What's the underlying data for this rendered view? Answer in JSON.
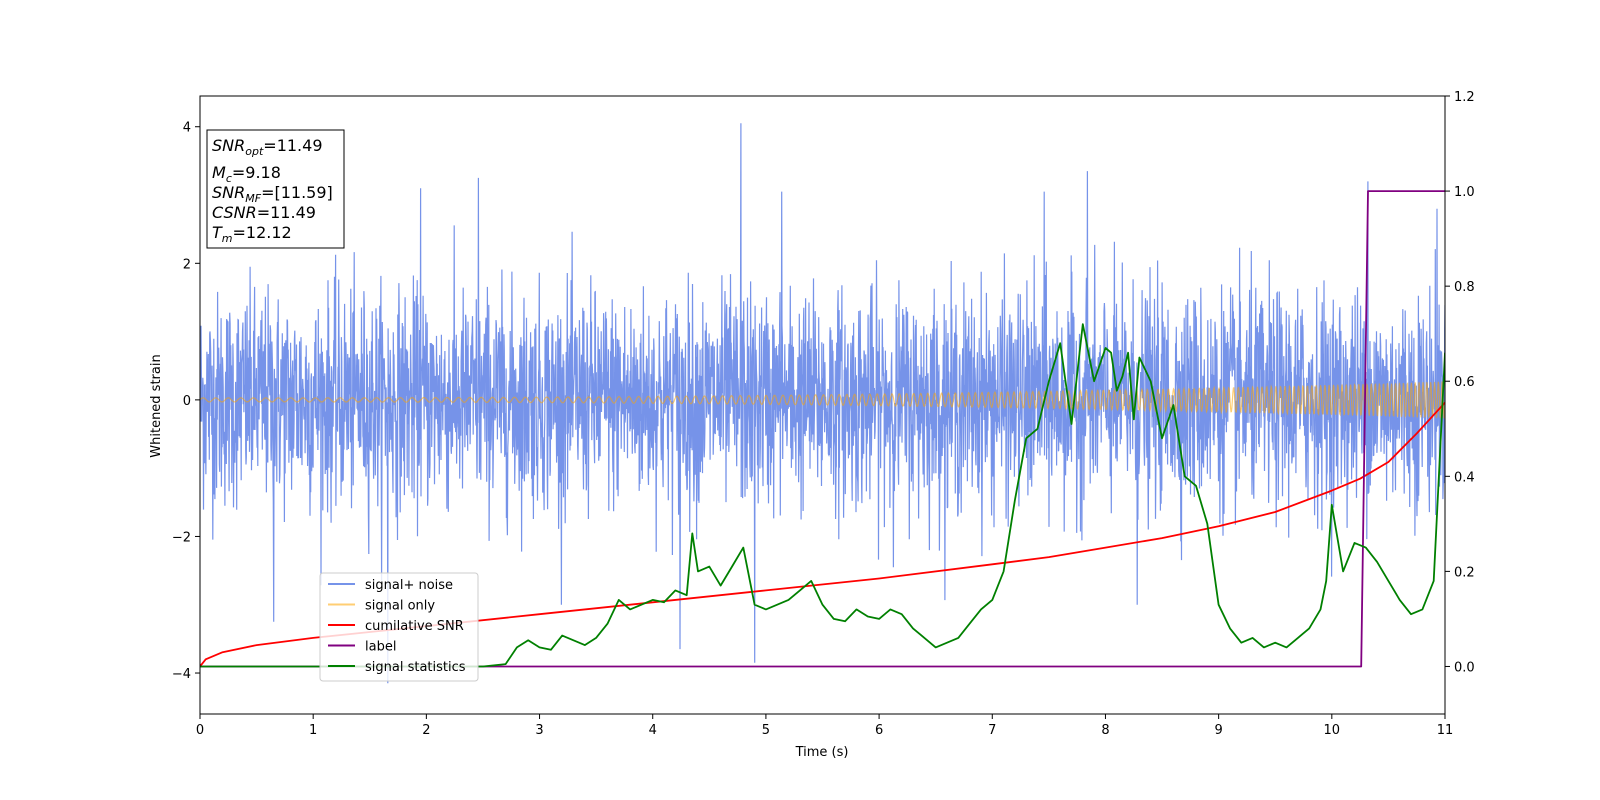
{
  "chart_data": {
    "type": "line",
    "xlabel": "Time (s)",
    "ylabel": "Whitened strain",
    "xlim": [
      0,
      11
    ],
    "ylim": [
      -4.6,
      4.45
    ],
    "y2lim": [
      -0.1,
      1.2
    ],
    "x_ticks": [
      "0",
      "1",
      "2",
      "3",
      "4",
      "5",
      "6",
      "7",
      "8",
      "9",
      "10",
      "11"
    ],
    "y_ticks": [
      "−4",
      "−2",
      "0",
      "2",
      "4"
    ],
    "y2_ticks": [
      "0.0",
      "0.2",
      "0.4",
      "0.6",
      "0.8",
      "1.0",
      "1.2"
    ],
    "grid": false,
    "legend_position": "lower-left",
    "info_box": {
      "snr_opt": {
        "sym": "SNR",
        "sub": "opt",
        "value": "=11.49"
      },
      "mc": {
        "sym": "M",
        "sub": "c",
        "value": "=9.18"
      },
      "snr_mf": {
        "sym": "SNR",
        "sub": "MF",
        "value": "=[11.59]"
      },
      "csnr": {
        "sym": "CSNR",
        "value": "=11.49"
      },
      "tm": {
        "sym": "T",
        "sub": "m",
        "value": "=12.12"
      }
    },
    "series": [
      {
        "name": "signal+ noise",
        "axis": "left",
        "color": "#4169E1",
        "opacity": 0.72,
        "kind": "noise",
        "x_range": [
          0,
          11
        ],
        "std": 0.78,
        "peaks": [
          [
            0.65,
            -3.25
          ],
          [
            1.66,
            -4.15
          ],
          [
            1.95,
            3.1
          ],
          [
            2.46,
            3.25
          ],
          [
            4.24,
            -3.65
          ],
          [
            4.78,
            4.05
          ],
          [
            4.9,
            -3.85
          ],
          [
            5.14,
            3.05
          ],
          [
            7.84,
            3.35
          ],
          [
            7.46,
            3.05
          ],
          [
            8.28,
            -3.0
          ],
          [
            10.32,
            3.2
          ],
          [
            10.93,
            2.8
          ]
        ]
      },
      {
        "name": "signal only",
        "axis": "left",
        "color": "#FFA500",
        "opacity": 0.55,
        "kind": "chirp",
        "amp_start": 0.03,
        "amp_end": 0.27
      },
      {
        "name": "cumilative SNR",
        "axis": "right",
        "color": "#FF0000",
        "x": [
          0,
          0.05,
          0.2,
          0.5,
          1,
          2,
          3,
          4,
          5,
          6,
          7,
          7.5,
          8,
          8.5,
          9,
          9.5,
          10,
          10.25,
          10.5,
          10.75,
          11
        ],
        "y": [
          0.0,
          0.015,
          0.03,
          0.045,
          0.06,
          0.085,
          0.11,
          0.135,
          0.16,
          0.185,
          0.215,
          0.23,
          0.25,
          0.27,
          0.295,
          0.325,
          0.37,
          0.395,
          0.43,
          0.49,
          0.555
        ]
      },
      {
        "name": "label",
        "axis": "right",
        "color": "#800080",
        "x": [
          0,
          10.26,
          10.32,
          11
        ],
        "y": [
          0.0,
          0.0,
          1.0,
          1.0
        ]
      },
      {
        "name": "signal statistics",
        "axis": "right",
        "color": "#008000",
        "x": [
          0,
          2.5,
          2.7,
          2.8,
          2.9,
          3.0,
          3.1,
          3.2,
          3.3,
          3.4,
          3.5,
          3.6,
          3.7,
          3.8,
          3.9,
          4.0,
          4.1,
          4.2,
          4.3,
          4.35,
          4.4,
          4.5,
          4.6,
          4.7,
          4.8,
          4.9,
          5.0,
          5.1,
          5.2,
          5.3,
          5.4,
          5.5,
          5.6,
          5.7,
          5.8,
          5.9,
          6.0,
          6.1,
          6.2,
          6.3,
          6.4,
          6.5,
          6.6,
          6.7,
          6.8,
          6.9,
          7.0,
          7.1,
          7.2,
          7.3,
          7.4,
          7.5,
          7.6,
          7.7,
          7.8,
          7.9,
          8.0,
          8.05,
          8.1,
          8.15,
          8.2,
          8.25,
          8.3,
          8.4,
          8.5,
          8.6,
          8.7,
          8.8,
          8.9,
          9.0,
          9.1,
          9.2,
          9.3,
          9.4,
          9.5,
          9.6,
          9.7,
          9.8,
          9.9,
          9.95,
          10.0,
          10.1,
          10.2,
          10.3,
          10.4,
          10.5,
          10.6,
          10.7,
          10.8,
          10.9,
          11.0
        ],
        "y": [
          0.0,
          0.0,
          0.005,
          0.04,
          0.055,
          0.04,
          0.035,
          0.065,
          0.055,
          0.045,
          0.06,
          0.09,
          0.14,
          0.12,
          0.13,
          0.14,
          0.135,
          0.16,
          0.15,
          0.28,
          0.2,
          0.21,
          0.17,
          0.21,
          0.25,
          0.13,
          0.12,
          0.13,
          0.14,
          0.16,
          0.18,
          0.13,
          0.1,
          0.095,
          0.12,
          0.105,
          0.1,
          0.12,
          0.11,
          0.08,
          0.06,
          0.04,
          0.05,
          0.06,
          0.09,
          0.12,
          0.14,
          0.2,
          0.35,
          0.48,
          0.5,
          0.6,
          0.68,
          0.51,
          0.72,
          0.6,
          0.67,
          0.66,
          0.58,
          0.61,
          0.66,
          0.52,
          0.65,
          0.6,
          0.48,
          0.55,
          0.4,
          0.38,
          0.3,
          0.13,
          0.08,
          0.05,
          0.06,
          0.04,
          0.05,
          0.04,
          0.06,
          0.08,
          0.12,
          0.18,
          0.34,
          0.2,
          0.26,
          0.25,
          0.22,
          0.18,
          0.14,
          0.11,
          0.12,
          0.18,
          0.66
        ]
      }
    ]
  }
}
